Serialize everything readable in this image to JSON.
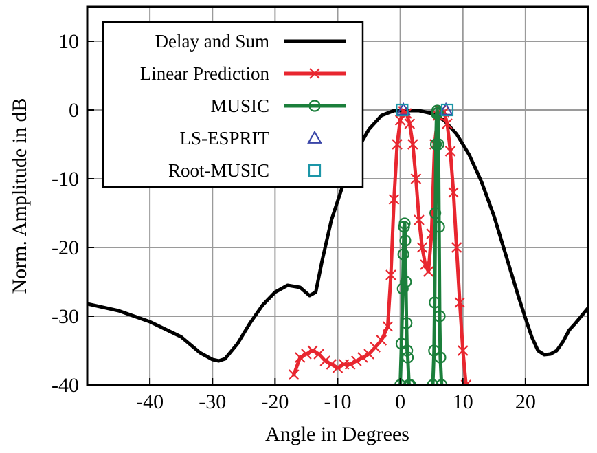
{
  "chart_data": {
    "type": "line",
    "title": "",
    "xlabel": "Angle in Degrees",
    "ylabel": "Norm. Amplitude in dB",
    "xlim": [
      -50,
      30
    ],
    "ylim": [
      -40,
      15
    ],
    "xticks": [
      -40,
      -30,
      -20,
      -10,
      0,
      10,
      20
    ],
    "yticks": [
      10,
      0,
      -10,
      -20,
      -30,
      -40
    ],
    "grid": true,
    "legend_position": "top-left",
    "series": [
      {
        "name": "Delay and Sum",
        "color": "#000000",
        "marker": "none",
        "x": [
          -50,
          -45,
          -40,
          -35,
          -32,
          -30,
          -29,
          -28,
          -26,
          -24,
          -22,
          -20,
          -18,
          -16,
          -14.5,
          -13.5,
          -12.5,
          -11,
          -9,
          -7,
          -5,
          -3,
          -1,
          1,
          3,
          5,
          7,
          9,
          11,
          13,
          15,
          17,
          19,
          20,
          21,
          22,
          23,
          24,
          25,
          26,
          27,
          28,
          30
        ],
        "y": [
          -28.2,
          -29.2,
          -30.8,
          -33.0,
          -35.3,
          -36.3,
          -36.5,
          -36.2,
          -34.0,
          -31.0,
          -28.4,
          -26.5,
          -25.5,
          -25.8,
          -27.0,
          -26.5,
          -22.0,
          -16.0,
          -10.5,
          -6.0,
          -2.8,
          -0.8,
          -0.1,
          -0.1,
          -0.1,
          -0.5,
          -1.5,
          -3.5,
          -6.5,
          -10.5,
          -15.5,
          -21.5,
          -27.5,
          -30.3,
          -33.0,
          -35.0,
          -35.6,
          -35.5,
          -35.0,
          -33.7,
          -32.0,
          -31.0,
          -28.8
        ]
      },
      {
        "name": "Linear Prediction",
        "color": "#e8262f",
        "marker": "x",
        "x": [
          -17,
          -16,
          -15,
          -14,
          -13,
          -12,
          -11,
          -10,
          -9,
          -8,
          -7,
          -6,
          -5,
          -4,
          -3,
          -2,
          -1.5,
          -1,
          -0.5,
          0,
          0.5,
          1,
          1.5,
          2,
          2.5,
          3,
          3.5,
          4,
          4.5,
          5,
          5.5,
          6,
          6.5,
          7,
          7.5,
          8,
          8.5,
          9,
          9.5,
          10,
          10.5
        ],
        "y": [
          -38.5,
          -36.0,
          -35.5,
          -35.0,
          -35.5,
          -36.5,
          -37.0,
          -37.5,
          -37.0,
          -37.0,
          -36.5,
          -36.0,
          -35.5,
          -34.5,
          -33.5,
          -31.5,
          -24.0,
          -13.0,
          -5.0,
          -1.5,
          -0.2,
          -0.5,
          -2.0,
          -5.0,
          -10.0,
          -16.0,
          -20.0,
          -22.5,
          -23.5,
          -18.0,
          -5.0,
          -0.8,
          -0.1,
          -0.3,
          -2.0,
          -6.0,
          -12.0,
          -20.0,
          -28.0,
          -35.0,
          -40.0
        ]
      },
      {
        "name": "MUSIC",
        "color": "#1b7f3b",
        "marker": "o",
        "x": [
          0.0,
          0.2,
          0.4,
          0.5,
          0.6,
          0.7,
          0.8,
          0.9,
          1.0,
          1.1,
          1.2,
          1.4,
          1.6,
          null,
          5.2,
          5.4,
          5.5,
          5.6,
          5.7,
          5.8,
          5.9,
          6.0,
          6.1,
          6.2,
          6.3,
          6.4,
          6.6
        ],
        "y": [
          -40.0,
          -34.0,
          -26.0,
          -21.0,
          -17.0,
          -16.5,
          -19.0,
          -25.0,
          -31.0,
          -35.0,
          -36.0,
          -40.0,
          -40.0,
          null,
          -40.0,
          -35.0,
          -28.0,
          -15.0,
          -5.0,
          -0.5,
          -0.1,
          -0.4,
          -5.0,
          -17.0,
          -30.0,
          -36.0,
          -40.0
        ]
      },
      {
        "name": "LS-ESPRIT",
        "color": "#3a46a8",
        "marker": "triangle",
        "x": [
          0.5,
          7.3
        ],
        "y": [
          0.0,
          0.0
        ]
      },
      {
        "name": "Root-MUSIC",
        "color": "#1c96a8",
        "marker": "square",
        "x": [
          0.3,
          7.5
        ],
        "y": [
          0.0,
          0.0
        ]
      }
    ]
  }
}
